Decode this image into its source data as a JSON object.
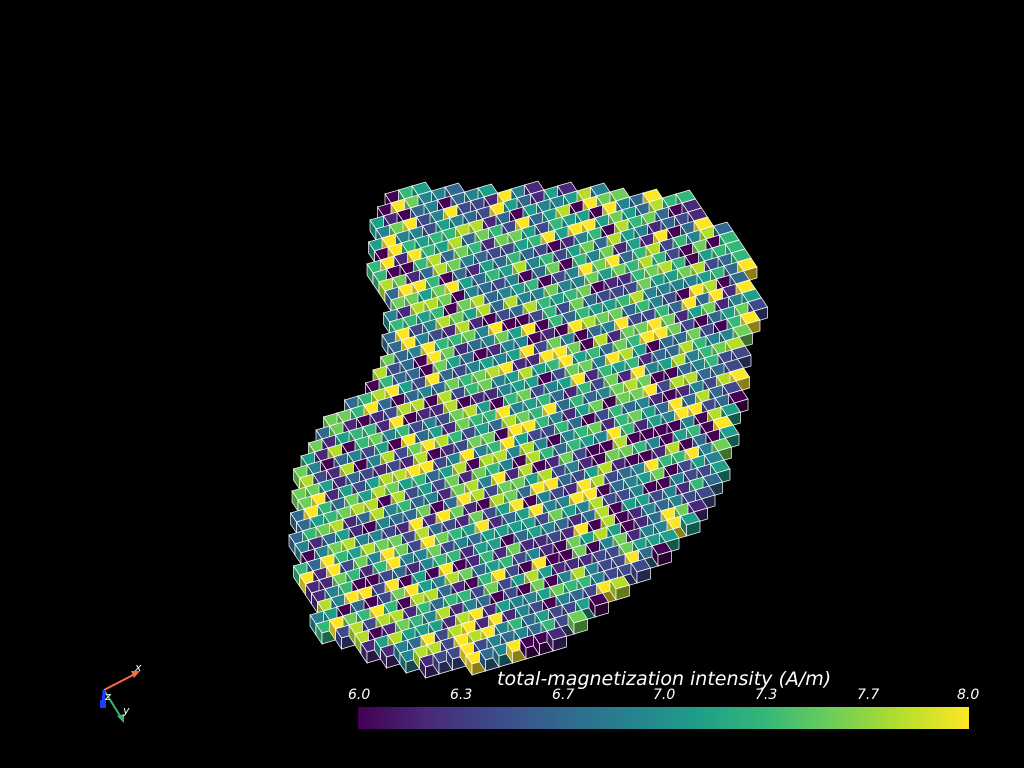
{
  "scalar_bar": {
    "title": "total-magnetization intensity (A/m)",
    "ticks": [
      "6.0",
      "6.3",
      "6.7",
      "7.0",
      "7.3",
      "7.7",
      "8.0"
    ],
    "range": [
      6.0,
      8.0
    ],
    "colormap": "viridis",
    "colors": [
      "#440154",
      "#482878",
      "#3e4989",
      "#31688e",
      "#26828e",
      "#1f9e89",
      "#35b779",
      "#6ece58",
      "#b5de2b",
      "#fde725"
    ]
  },
  "orientation_axes": {
    "x_label": "x",
    "y_label": "y",
    "z_label": "z",
    "x_color": "#f46d43",
    "y_color": "#3cb371",
    "z_color": "#1f3cff"
  },
  "mesh": {
    "edge_color": "#ffffff",
    "background": "#000000"
  }
}
